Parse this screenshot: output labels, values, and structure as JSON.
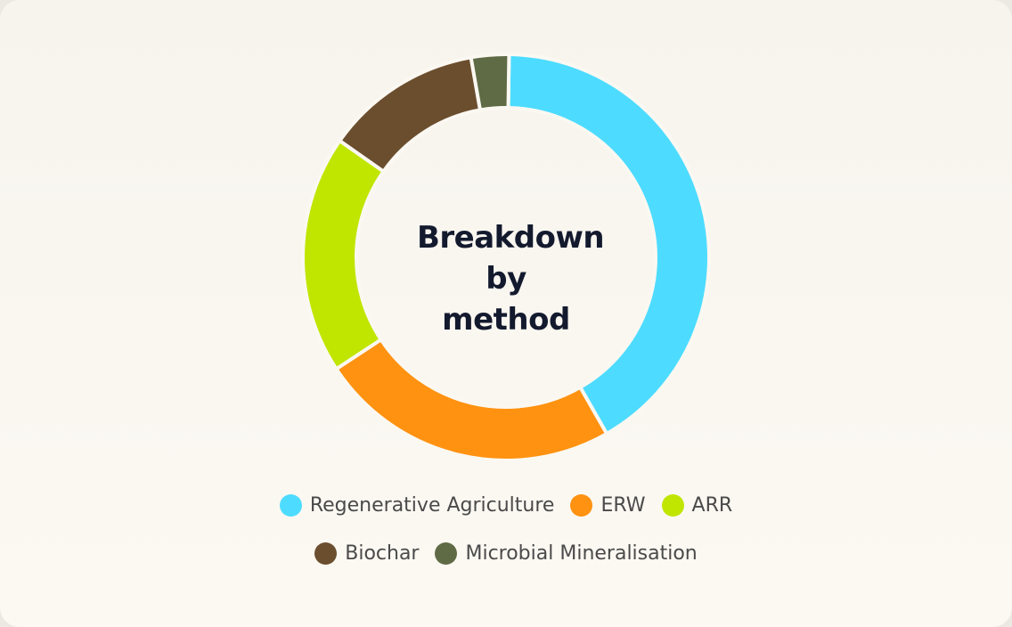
{
  "chart_data": {
    "type": "donut",
    "title": "Breakdown by method",
    "categories": [
      "Regenerative Agriculture",
      "ERW",
      "ARR",
      "Biochar",
      "Microbial Mineralisation"
    ],
    "values": [
      41.5,
      24,
      19,
      12.5,
      3
    ],
    "colors": [
      "#4ddcff",
      "#ff9210",
      "#c0e600",
      "#6b4e2e",
      "#5f6b45"
    ]
  }
}
